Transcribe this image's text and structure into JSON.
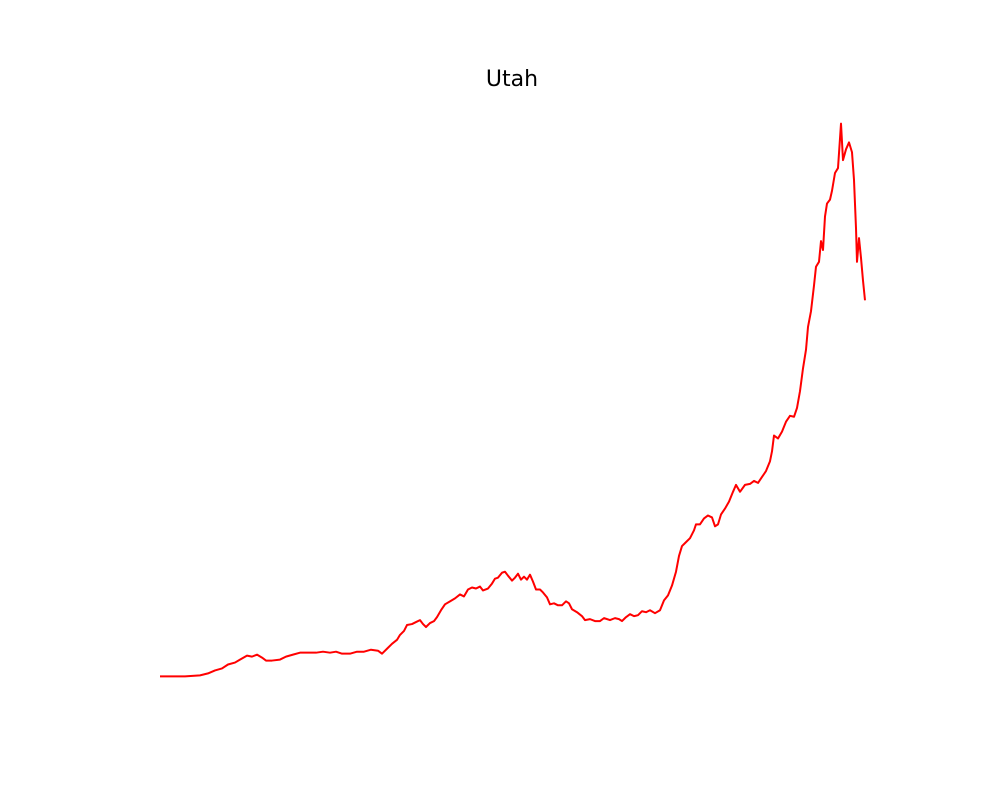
{
  "chart_data": {
    "type": "line",
    "title": "Utah",
    "color": "#ff0000",
    "x": [
      0,
      25,
      40,
      48,
      55,
      62,
      68,
      75,
      80,
      87,
      92,
      97,
      102,
      106,
      112,
      120,
      126,
      133,
      140,
      148,
      156,
      163,
      170,
      176,
      182,
      190,
      197,
      204,
      211,
      218,
      222,
      227,
      232,
      237,
      240,
      244,
      247,
      252,
      256,
      260,
      263,
      266,
      270,
      274,
      277,
      281,
      285,
      290,
      295,
      300,
      304,
      308,
      312,
      316,
      320,
      323,
      328,
      332,
      335,
      338,
      342,
      345,
      348,
      352,
      355,
      358,
      361,
      364,
      367,
      370,
      373,
      376,
      380,
      383,
      387,
      390,
      394,
      398,
      402,
      406,
      409,
      412,
      417,
      422,
      425,
      430,
      435,
      440,
      444,
      450,
      455,
      459,
      462,
      466,
      470,
      474,
      478,
      482,
      486,
      490,
      495,
      500,
      504,
      508,
      512,
      516,
      519,
      522,
      526,
      530,
      534,
      536,
      540,
      544,
      548,
      552,
      555,
      558,
      561,
      565,
      569,
      573,
      576,
      580,
      585,
      590,
      594,
      598,
      602,
      606,
      610,
      612,
      614,
      618,
      622,
      626,
      630,
      634,
      637,
      640,
      643,
      646,
      648,
      651,
      654,
      656,
      659,
      661,
      663,
      665,
      667,
      670,
      672,
      675,
      678,
      681,
      683,
      686,
      689,
      692,
      694,
      696,
      697,
      699,
      701,
      703,
      705
    ],
    "values": [
      0,
      0,
      1,
      3,
      6,
      8,
      12,
      14,
      17,
      21,
      20,
      22,
      19,
      16,
      16,
      17,
      20,
      22,
      24,
      24,
      24,
      25,
      24,
      25,
      23,
      23,
      25,
      25,
      27,
      26,
      23,
      28,
      33,
      37,
      42,
      46,
      52,
      53,
      55,
      57,
      53,
      50,
      54,
      56,
      60,
      67,
      73,
      76,
      79,
      83,
      81,
      88,
      90,
      89,
      91,
      87,
      89,
      94,
      99,
      100,
      105,
      106,
      102,
      97,
      100,
      104,
      98,
      101,
      98,
      103,
      96,
      88,
      88,
      85,
      80,
      73,
      74,
      72,
      72,
      76,
      74,
      68,
      65,
      61,
      57,
      58,
      56,
      56,
      59,
      57,
      59,
      58,
      56,
      60,
      63,
      61,
      62,
      66,
      65,
      67,
      64,
      67,
      77,
      82,
      92,
      106,
      122,
      132,
      136,
      140,
      148,
      154,
      154,
      160,
      163,
      161,
      152,
      154,
      164,
      170,
      177,
      187,
      194,
      187,
      194,
      195,
      198,
      196,
      202,
      208,
      218,
      228,
      244,
      241,
      248,
      258,
      264,
      263,
      272,
      289,
      312,
      331,
      354,
      370,
      396,
      415,
      420,
      441,
      432,
      466,
      479,
      483,
      492,
      510,
      515,
      560,
      523,
      534,
      541,
      531,
      503,
      454,
      420,
      444,
      424,
      401,
      381
    ],
    "xlim": [
      -35,
      740
    ],
    "ylim": [
      -28,
      588
    ]
  }
}
